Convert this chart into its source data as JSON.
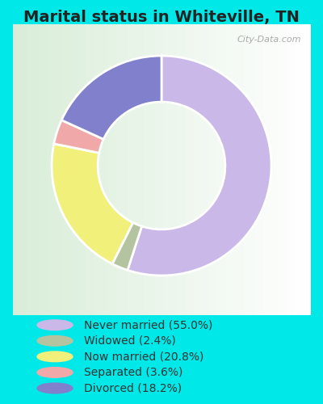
{
  "title": "Marital status in Whiteville, TN",
  "title_fontsize": 14,
  "slices": [
    55.0,
    2.4,
    20.8,
    3.6,
    18.2
  ],
  "labels": [
    "Never married (55.0%)",
    "Widowed (2.4%)",
    "Now married (20.8%)",
    "Separated (3.6%)",
    "Divorced (18.2%)"
  ],
  "colors": [
    "#c9b8e8",
    "#b5c4a0",
    "#f0f07a",
    "#f0a8a8",
    "#8080cc"
  ],
  "bg_outer": "#00e8e8",
  "bg_chart": "#e8f5e0",
  "watermark": "City-Data.com",
  "legend_fontsize": 10,
  "donut_width": 0.42,
  "start_angle": 90,
  "legend_text_color": "#333333",
  "title_color": "#222222"
}
